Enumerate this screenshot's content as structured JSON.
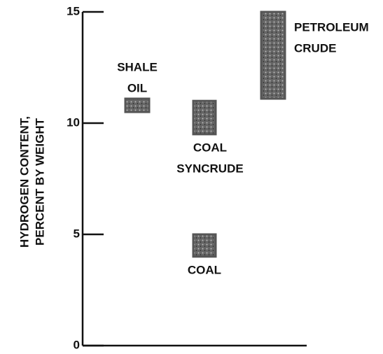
{
  "chart_data": {
    "type": "range-bar",
    "ylabel": [
      "HYDROGEN CONTENT,",
      "PERCENT BY WEIGHT"
    ],
    "categories": [
      [
        "SHALE",
        "OIL"
      ],
      [
        "COAL",
        "SYNCRUDE"
      ],
      [
        "COAL"
      ],
      [
        "PETROLEUM",
        "CRUDE"
      ]
    ],
    "low": [
      10.5,
      9.5,
      4.0,
      11.1
    ],
    "high": [
      11.1,
      11.0,
      5.0,
      15.0
    ],
    "color": "#555555",
    "ylim": [
      0,
      15
    ],
    "yticks": [
      0,
      5,
      10,
      15
    ],
    "grid": false
  }
}
